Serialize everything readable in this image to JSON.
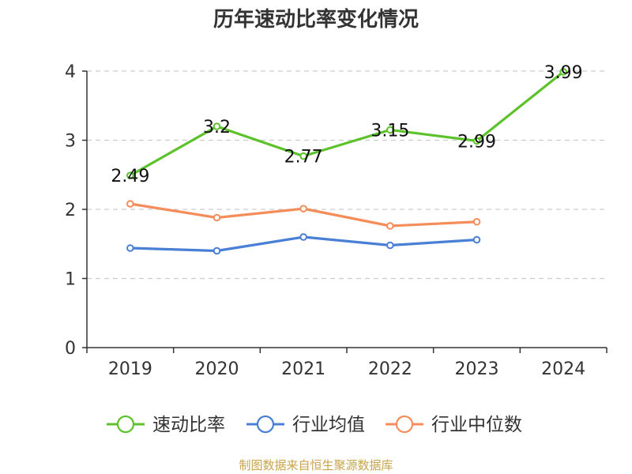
{
  "chart_data": {
    "type": "line",
    "title": "历年速动比率变化情况",
    "categories": [
      "2019",
      "2020",
      "2021",
      "2022",
      "2023",
      "2024"
    ],
    "ylim": [
      0,
      4
    ],
    "yticks": [
      "0",
      "1",
      "2",
      "3",
      "4"
    ],
    "grid": true,
    "legend_position": "bottom",
    "series": [
      {
        "name": "速动比率",
        "color": "#5cc22b",
        "values": [
          2.49,
          3.2,
          2.77,
          3.15,
          2.99,
          3.99
        ],
        "labels": [
          "2.49",
          "3.2",
          "2.77",
          "3.15",
          "2.99",
          "3.99"
        ]
      },
      {
        "name": "行业均值",
        "color": "#4a7fd6",
        "values": [
          1.44,
          1.4,
          1.6,
          1.48,
          1.56,
          null
        ]
      },
      {
        "name": "行业中位数",
        "color": "#f58d5b",
        "values": [
          2.08,
          1.88,
          2.01,
          1.76,
          1.82,
          null
        ]
      }
    ]
  },
  "footer": {
    "source": "制图数据来自恒生聚源数据库"
  }
}
